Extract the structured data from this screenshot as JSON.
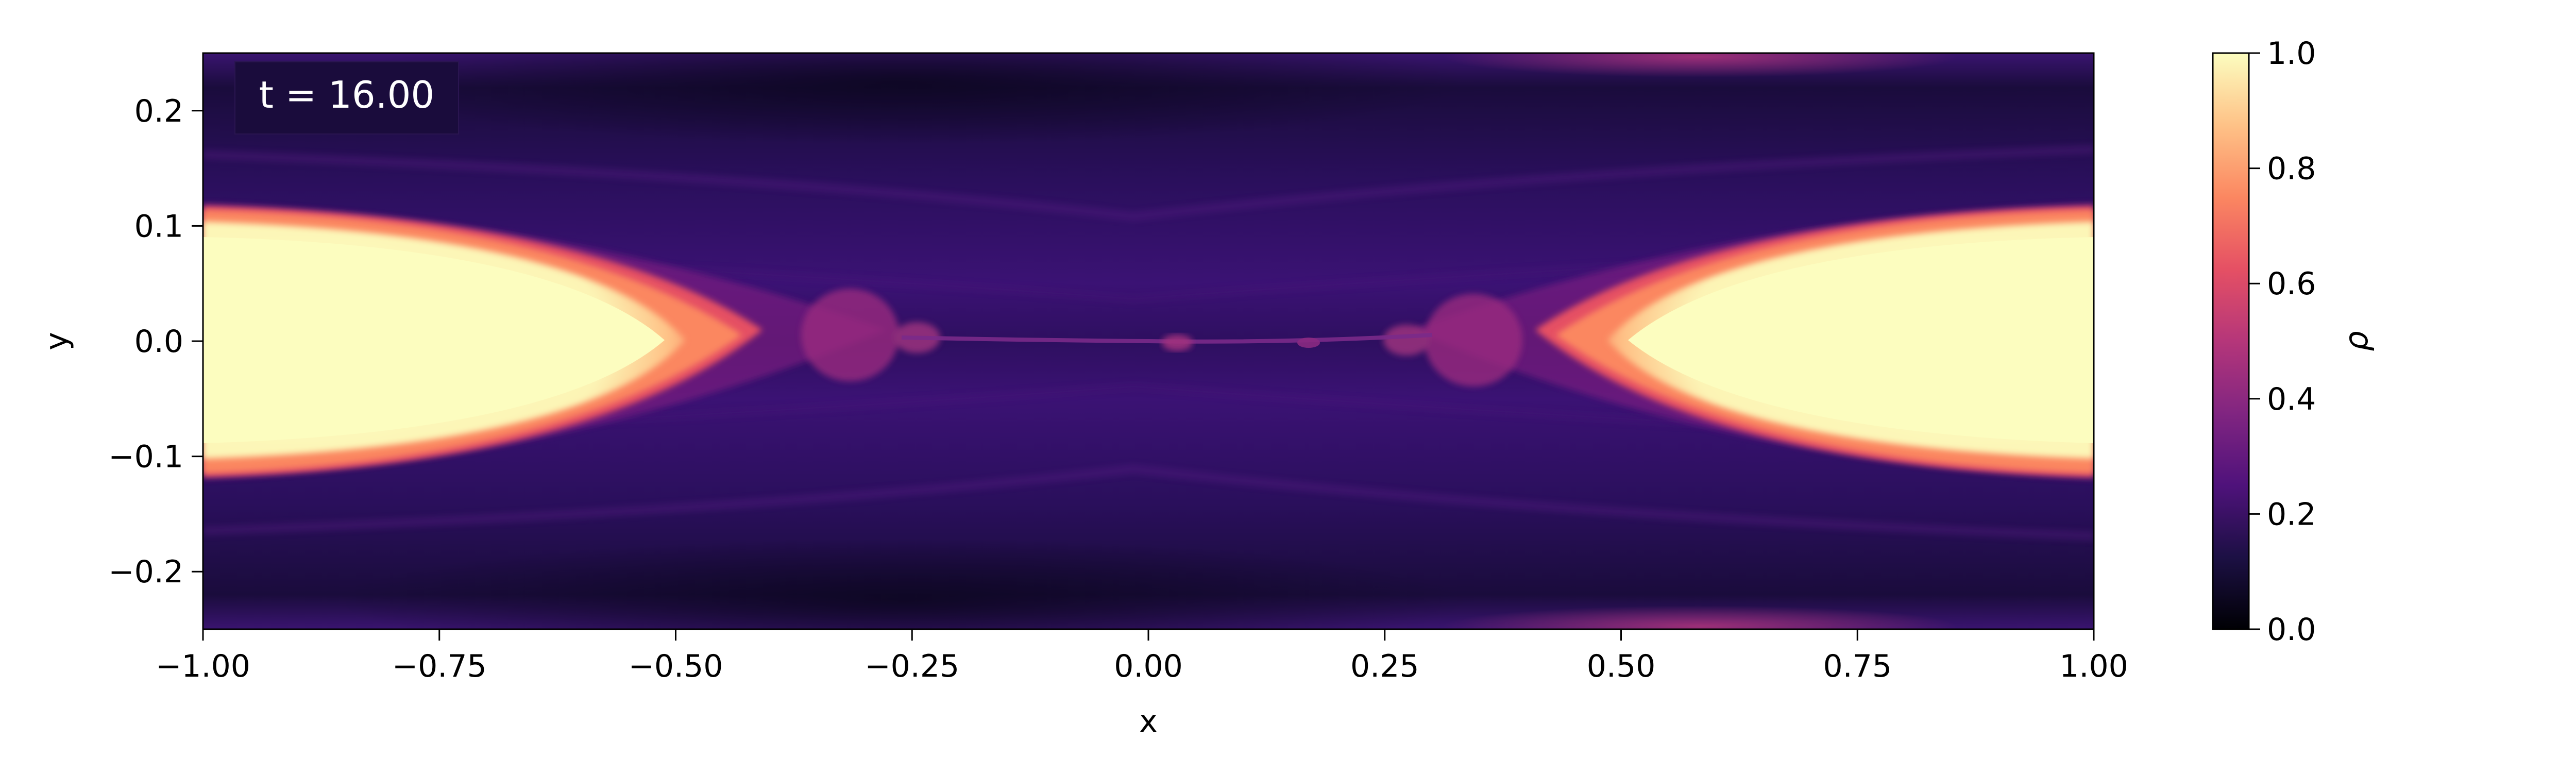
{
  "chart_data": {
    "type": "heatmap",
    "title": "",
    "annotation": "t = 16.00",
    "xlabel": "x",
    "ylabel": "y",
    "xlim": [
      -1.0,
      1.0
    ],
    "ylim": [
      -0.25,
      0.25
    ],
    "xticks": [
      -1.0,
      -0.75,
      -0.5,
      -0.25,
      0.0,
      0.25,
      0.5,
      0.75,
      1.0
    ],
    "xtick_labels": [
      "−1.00",
      "−0.75",
      "−0.50",
      "−0.25",
      "0.00",
      "0.25",
      "0.50",
      "0.75",
      "1.00"
    ],
    "yticks": [
      -0.2,
      -0.1,
      0.0,
      0.1,
      0.2
    ],
    "ytick_labels": [
      "−0.2",
      "−0.1",
      "0.0",
      "0.1",
      "0.2"
    ],
    "colorbar": {
      "label": "ρ",
      "range": [
        0.0,
        1.0
      ],
      "ticks": [
        0.0,
        0.2,
        0.4,
        0.6,
        0.8,
        1.0
      ],
      "tick_labels": [
        "0.0",
        "0.2",
        "0.4",
        "0.6",
        "0.8",
        "1.0"
      ],
      "colormap": "magma",
      "colormap_stops": [
        "#000004",
        "#1c1044",
        "#4f127b",
        "#812581",
        "#b5367a",
        "#e55064",
        "#fb8761",
        "#fec287",
        "#fcfdbf"
      ]
    },
    "field_description": {
      "background_density": 0.25,
      "left_dense_region": {
        "x_range": [
          -1.0,
          -0.5
        ],
        "y_range": [
          -0.12,
          0.12
        ],
        "density": 1.0
      },
      "right_dense_region": {
        "x_range": [
          0.5,
          1.0
        ],
        "y_range": [
          -0.12,
          0.12
        ],
        "density": 1.0
      },
      "central_filament": {
        "x_range": [
          -0.3,
          0.3
        ],
        "y": 0.0,
        "density": 0.4
      },
      "low_density_bands_y": [
        -0.22,
        0.22
      ]
    }
  }
}
